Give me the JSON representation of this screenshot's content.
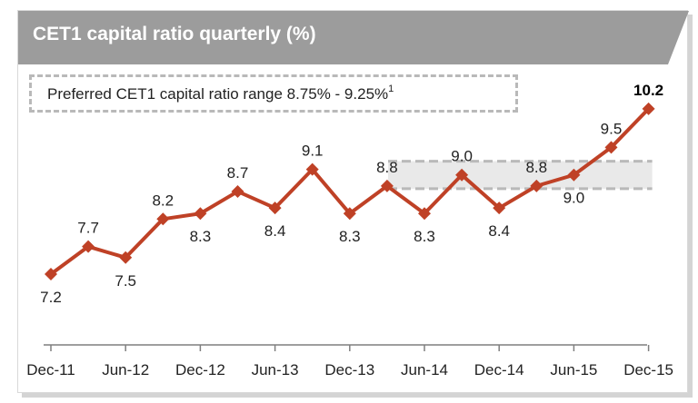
{
  "header": {
    "title": "CET1 capital ratio quarterly (%)",
    "background_color": "#9c9c9c"
  },
  "legend": {
    "text": "Preferred CET1 capital ratio range 8.75% - 9.25%",
    "footnote": "1"
  },
  "chart_data": {
    "type": "line",
    "title": "CET1 capital ratio quarterly (%)",
    "xlabel": "",
    "ylabel": "",
    "grid": false,
    "x": [
      "Dec-11",
      "Mar-12",
      "Jun-12",
      "Sep-12",
      "Dec-12",
      "Mar-13",
      "Jun-13",
      "Sep-13",
      "Dec-13",
      "Mar-14",
      "Jun-14",
      "Sep-14",
      "Dec-14",
      "Mar-15",
      "Jun-15",
      "Sep-15",
      "Dec-15"
    ],
    "tick_labels": [
      "Dec-11",
      "Jun-12",
      "Dec-12",
      "Jun-13",
      "Dec-13",
      "Jun-14",
      "Dec-14",
      "Jun-15",
      "Dec-15"
    ],
    "series": [
      {
        "values": [
          7.2,
          7.7,
          7.5,
          8.2,
          8.3,
          8.7,
          8.4,
          9.1,
          8.3,
          8.8,
          8.3,
          9.0,
          8.4,
          8.8,
          9.0,
          9.5,
          10.2
        ],
        "labels": [
          "7.2",
          "7.7",
          "7.5",
          "8.2",
          "8.3",
          "8.7",
          "8.4",
          "9.1",
          "8.3",
          "8.8",
          "8.3",
          "9.0",
          "8.4",
          "8.8",
          "9.0",
          "9.5",
          "10.2"
        ],
        "label_pos": [
          "below",
          "above",
          "below",
          "above",
          "below",
          "above",
          "below",
          "above",
          "below",
          "above",
          "below",
          "above",
          "below",
          "above",
          "below",
          "above",
          "above"
        ],
        "highlight_last": true,
        "color": "#bf4126"
      }
    ],
    "preferred_range": [
      8.75,
      9.25
    ],
    "preferred_range_from": "Jun-14",
    "preferred_range_color": "#e9e9e9",
    "axis_color": "#7f7f7f"
  }
}
